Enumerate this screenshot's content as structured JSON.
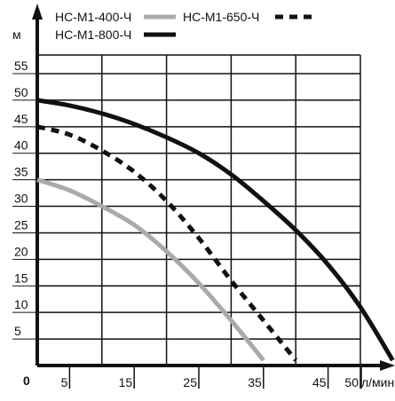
{
  "chart_data": {
    "type": "line",
    "title": "",
    "xlabel": "л/мин",
    "ylabel": "м",
    "origin_label": "0",
    "xlim": [
      0,
      55
    ],
    "ylim": [
      0,
      60
    ],
    "grid": true,
    "x_ticks": [
      5,
      15,
      25,
      35,
      45,
      50
    ],
    "x_tick_labels": [
      "5",
      "15",
      "25",
      "35",
      "45",
      "50"
    ],
    "x_gridlines": [
      0,
      10,
      20,
      30,
      40,
      50
    ],
    "y_ticks": [
      5,
      10,
      15,
      20,
      25,
      30,
      35,
      40,
      45,
      50,
      55
    ],
    "y_tick_labels": [
      "5",
      "10",
      "15",
      "20",
      "25",
      "30",
      "35",
      "40",
      "45",
      "50",
      "55"
    ],
    "legend_position": "top",
    "series": [
      {
        "name": "НС-М1-400-Ч",
        "color": "#aaaaaa",
        "style": "solid",
        "x": [
          0,
          5,
          10,
          15,
          20,
          25,
          30,
          35
        ],
        "y": [
          35,
          33,
          30,
          26.5,
          21.5,
          15.5,
          8.5,
          1
        ]
      },
      {
        "name": "НС-М1-650-Ч",
        "color": "#111111",
        "style": "dashed",
        "x": [
          0,
          5,
          10,
          15,
          20,
          25,
          30,
          35,
          40
        ],
        "y": [
          45,
          43.5,
          40.5,
          36.5,
          31,
          24,
          16,
          8.5,
          1
        ]
      },
      {
        "name": "НС-М1-800-Ч",
        "color": "#111111",
        "style": "solid",
        "x": [
          0,
          5,
          10,
          15,
          20,
          25,
          30,
          35,
          40,
          45,
          50,
          55
        ],
        "y": [
          50,
          49,
          47.5,
          45.5,
          43,
          40,
          36,
          31,
          25.5,
          19,
          11,
          1
        ]
      }
    ]
  }
}
